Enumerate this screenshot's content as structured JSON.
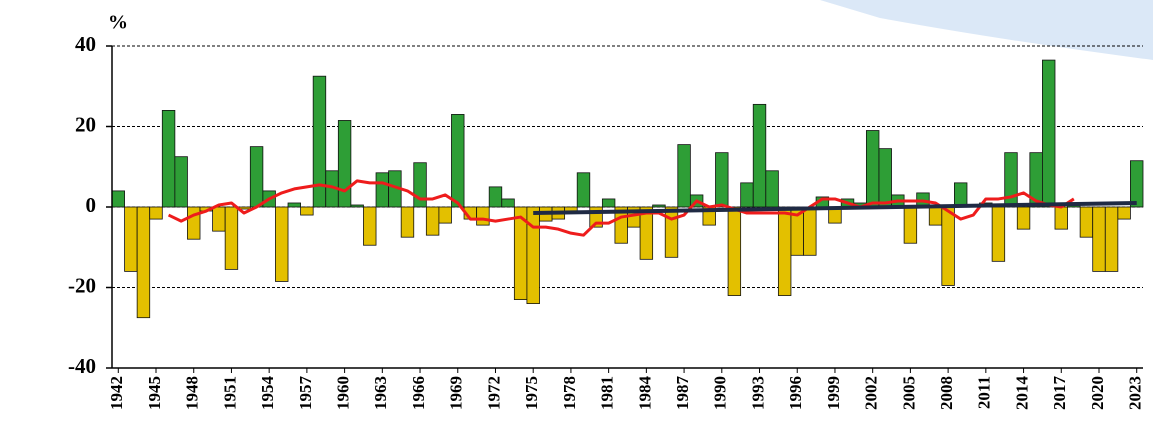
{
  "chart_data": {
    "type": "bar",
    "y_label": "%",
    "x": [
      1942,
      1943,
      1944,
      1945,
      1946,
      1947,
      1948,
      1949,
      1950,
      1951,
      1952,
      1953,
      1954,
      1955,
      1956,
      1957,
      1958,
      1959,
      1960,
      1961,
      1962,
      1963,
      1964,
      1965,
      1966,
      1967,
      1968,
      1969,
      1970,
      1971,
      1972,
      1973,
      1974,
      1975,
      1976,
      1977,
      1978,
      1979,
      1980,
      1981,
      1982,
      1983,
      1984,
      1985,
      1986,
      1987,
      1988,
      1989,
      1990,
      1991,
      1992,
      1993,
      1994,
      1995,
      1996,
      1997,
      1998,
      1999,
      2000,
      2001,
      2002,
      2003,
      2004,
      2005,
      2006,
      2007,
      2008,
      2009,
      2010,
      2011,
      2012,
      2013,
      2014,
      2015,
      2016,
      2017,
      2018,
      2019,
      2020,
      2021,
      2022,
      2023
    ],
    "values": [
      4,
      -16,
      -27.5,
      -3,
      24,
      12.5,
      -8,
      -1,
      -6,
      -15.5,
      -0.5,
      15,
      4,
      -18.5,
      1,
      -2,
      32.5,
      9,
      21.5,
      0.5,
      -9.5,
      8.5,
      9,
      -7.5,
      11,
      -7,
      -4,
      23,
      -3,
      -4.5,
      5,
      2,
      -23,
      -24,
      -3.5,
      -3,
      -1.5,
      8.5,
      -5,
      2,
      -9,
      -5,
      -13,
      0.5,
      -12.5,
      15.5,
      3,
      -4.5,
      13.5,
      -22,
      6,
      25.5,
      9,
      -22,
      -12,
      -12,
      2.5,
      -4,
      2,
      1,
      19,
      14.5,
      3,
      -9,
      3.5,
      -4.5,
      -19.5,
      6,
      0.5,
      1,
      -13.5,
      13.5,
      -5.5,
      13.5,
      36.5,
      -5.5,
      0.5,
      -7.5,
      -16,
      -16,
      -3,
      11.5
    ],
    "positive_color": "#2e9e36",
    "negative_color": "#e3c000",
    "lines": [
      {
        "color": "#ee1c1c",
        "values": [
          null,
          null,
          null,
          null,
          -2,
          -3.5,
          -2,
          -1,
          0.5,
          1,
          -1.5,
          0,
          2,
          3.5,
          4.5,
          5,
          5.5,
          5,
          4,
          6.5,
          6,
          6,
          5,
          4,
          2,
          2,
          3,
          1,
          -3,
          -3,
          -3.5,
          -3,
          -2.5,
          -5,
          -5,
          -5.5,
          -6.5,
          -7,
          -4,
          -4,
          -2.5,
          -2,
          -1.5,
          -1.5,
          -3,
          -2,
          1.5,
          0,
          0.5,
          -0.5,
          -1.5,
          -1.5,
          -1.5,
          -1.5,
          -2,
          0,
          2,
          2,
          1,
          0,
          1,
          1,
          1.5,
          1.5,
          1.5,
          1,
          -1,
          -3,
          -2,
          2,
          2,
          2.5,
          3.5,
          1.5,
          0.5,
          0,
          2,
          null,
          null,
          null,
          null,
          null
        ]
      },
      {
        "color": "#1f2a44",
        "x": [
          1975,
          2023
        ],
        "values": [
          -1.5,
          1
        ]
      }
    ],
    "xlim": [
      1941.5,
      2023.5
    ],
    "xticks": [
      1942,
      1945,
      1948,
      1951,
      1954,
      1957,
      1960,
      1963,
      1966,
      1969,
      1972,
      1975,
      1978,
      1981,
      1984,
      1987,
      1990,
      1993,
      1996,
      1999,
      2002,
      2005,
      2008,
      2011,
      2014,
      2017,
      2020,
      2023
    ],
    "ylim": [
      -40,
      40
    ],
    "yticks": [
      -40,
      -20,
      0,
      20,
      40
    ],
    "grid": true
  }
}
